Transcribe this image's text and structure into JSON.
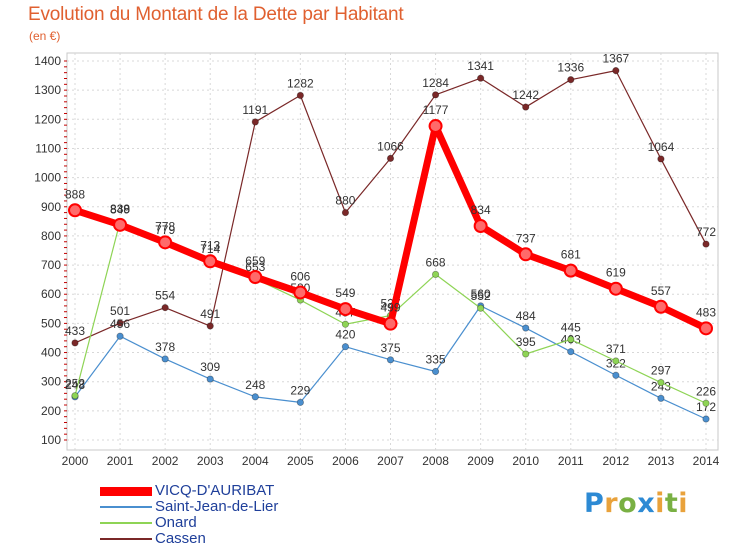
{
  "title": "Evolution du Montant de la Dette par Habitant",
  "subtitle": "(en €)",
  "logo": {
    "text": "Proxiti"
  },
  "chart_data": {
    "type": "line",
    "title": "Evolution du Montant de la Dette par Habitant",
    "subtitle": "(en €)",
    "ylim": [
      100,
      1400
    ],
    "yticks": [
      "100",
      "200",
      "300",
      "400",
      "500",
      "600",
      "700",
      "800",
      "900",
      "1000",
      "1100",
      "1200",
      "1300",
      "1400"
    ],
    "x": [
      "2000",
      "2001",
      "2002",
      "2003",
      "2004",
      "2005",
      "2006",
      "2007",
      "2008",
      "2009",
      "2010",
      "2011",
      "2012",
      "2013",
      "2014"
    ],
    "grid": true,
    "legend_position": "bottom-left",
    "series": [
      {
        "name": "Cassen",
        "color": "#7a2828",
        "values": [
          433,
          501,
          554,
          491,
          1191,
          1282,
          880,
          1066,
          1284,
          1341,
          1242,
          1336,
          1367,
          1064,
          772
        ]
      },
      {
        "name": "Saint-Jean-de-Lier",
        "color": "#4a8fcf",
        "values": [
          248,
          456,
          378,
          309,
          248,
          229,
          420,
          375,
          335,
          560,
          484,
          403,
          322,
          243,
          172
        ]
      },
      {
        "name": "Onard",
        "color": "#8ed455",
        "values": [
          252,
          849,
          779,
          714,
          653,
          580,
          497,
          527,
          668,
          552,
          395,
          445,
          371,
          297,
          226
        ]
      },
      {
        "name": "VICQ-D'AURIBAT",
        "color": "#ff0000",
        "values": [
          888,
          838,
          778,
          713,
          659,
          606,
          549,
          499,
          1177,
          834,
          737,
          681,
          619,
          557,
          483
        ]
      }
    ],
    "legend": [
      "VICQ-D'AURIBAT",
      "Saint-Jean-de-Lier",
      "Onard",
      "Cassen"
    ]
  }
}
